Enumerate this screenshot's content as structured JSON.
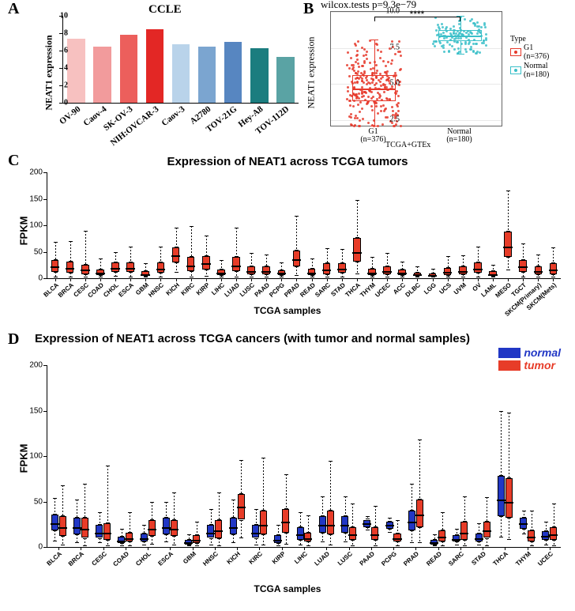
{
  "panelA": {
    "label": "A",
    "title": "CCLE",
    "ylabel": "NEAT1 expression",
    "ymax": 10,
    "ytick_step": 2,
    "categories": [
      "OV-90",
      "Caov-4",
      "SK-OV-3",
      "NIH:OVCAR-3",
      "Caov-3",
      "A2780",
      "TOV-21G",
      "Hey-A8",
      "TOV-112D"
    ],
    "values": [
      7.4,
      6.5,
      7.8,
      8.5,
      6.7,
      6.5,
      7.0,
      6.3,
      5.3
    ],
    "bar_colors": [
      "#f7c1c0",
      "#f29b9c",
      "#ec5f5c",
      "#e32725",
      "#b9d3ea",
      "#7ba5d0",
      "#5786c1",
      "#1b7d7f",
      "#5aa3a4"
    ],
    "bar_width": 0.68
  },
  "panelB": {
    "label": "B",
    "pvalue": "wilcox.tests p=9.3e−79",
    "stars": "****",
    "ylabel": "NEAT1 expression",
    "xlabel": "TCGA+GTEx",
    "ylim": [
      2.0,
      10.0
    ],
    "yticks": [
      2.5,
      5.0,
      7.5,
      10.0
    ],
    "groups": [
      {
        "name": "G1",
        "n": 376,
        "color": "#e6392b",
        "median": 4.7,
        "q1": 3.8,
        "q3": 5.6,
        "lo": 2.1,
        "hi": 8.1
      },
      {
        "name": "Normal",
        "n": 180,
        "color": "#3bc0c9",
        "median": 8.35,
        "q1": 8.0,
        "q3": 8.75,
        "lo": 7.1,
        "hi": 9.7
      }
    ],
    "legend_title": "Type"
  },
  "panelC": {
    "label": "C",
    "title": "Expression of NEAT1 across TCGA tumors",
    "ylabel": "FPKM",
    "xlabel": "TCGA samples",
    "ylim": [
      0,
      200
    ],
    "ytick_step": 50,
    "box_color": "#e73c28",
    "samples": [
      {
        "n": "BLCA",
        "q1": 12,
        "med": 22,
        "q3": 34,
        "lo": 2,
        "hi": 68
      },
      {
        "n": "BRCA",
        "q1": 10,
        "med": 20,
        "q3": 32,
        "lo": 1,
        "hi": 70
      },
      {
        "n": "CESC",
        "q1": 8,
        "med": 16,
        "q3": 26,
        "lo": 1,
        "hi": 90
      },
      {
        "n": "COAD",
        "q1": 6,
        "med": 10,
        "q3": 16,
        "lo": 1,
        "hi": 38
      },
      {
        "n": "CHOL",
        "q1": 12,
        "med": 20,
        "q3": 30,
        "lo": 3,
        "hi": 50
      },
      {
        "n": "ESCA",
        "q1": 12,
        "med": 20,
        "q3": 30,
        "lo": 2,
        "hi": 60
      },
      {
        "n": "GBM",
        "q1": 4,
        "med": 8,
        "q3": 13,
        "lo": 1,
        "hi": 28
      },
      {
        "n": "HNSC",
        "q1": 10,
        "med": 18,
        "q3": 30,
        "lo": 1,
        "hi": 60
      },
      {
        "n": "KICH",
        "q1": 30,
        "med": 44,
        "q3": 58,
        "lo": 10,
        "hi": 96
      },
      {
        "n": "KIRC",
        "q1": 14,
        "med": 24,
        "q3": 40,
        "lo": 2,
        "hi": 98
      },
      {
        "n": "KIRP",
        "q1": 16,
        "med": 28,
        "q3": 42,
        "lo": 3,
        "hi": 80
      },
      {
        "n": "LIHC",
        "q1": 6,
        "med": 10,
        "q3": 16,
        "lo": 1,
        "hi": 35
      },
      {
        "n": "LUAD",
        "q1": 14,
        "med": 24,
        "q3": 40,
        "lo": 2,
        "hi": 95
      },
      {
        "n": "LUSC",
        "q1": 8,
        "med": 14,
        "q3": 22,
        "lo": 1,
        "hi": 48
      },
      {
        "n": "PAAD",
        "q1": 8,
        "med": 14,
        "q3": 22,
        "lo": 1,
        "hi": 45
      },
      {
        "n": "PCPG",
        "q1": 6,
        "med": 10,
        "q3": 15,
        "lo": 1,
        "hi": 30
      },
      {
        "n": "PRAD",
        "q1": 22,
        "med": 36,
        "q3": 52,
        "lo": 4,
        "hi": 118
      },
      {
        "n": "READ",
        "q1": 6,
        "med": 11,
        "q3": 18,
        "lo": 1,
        "hi": 38
      },
      {
        "n": "SARC",
        "q1": 8,
        "med": 16,
        "q3": 28,
        "lo": 1,
        "hi": 56
      },
      {
        "n": "STAD",
        "q1": 10,
        "med": 18,
        "q3": 28,
        "lo": 1,
        "hi": 55
      },
      {
        "n": "THCA",
        "q1": 32,
        "med": 50,
        "q3": 76,
        "lo": 8,
        "hi": 148
      },
      {
        "n": "THYM",
        "q1": 6,
        "med": 11,
        "q3": 18,
        "lo": 1,
        "hi": 40
      },
      {
        "n": "UCEC",
        "q1": 8,
        "med": 14,
        "q3": 22,
        "lo": 1,
        "hi": 48
      },
      {
        "n": "ACC",
        "q1": 6,
        "med": 10,
        "q3": 16,
        "lo": 1,
        "hi": 32
      },
      {
        "n": "DLBC",
        "q1": 4,
        "med": 7,
        "q3": 11,
        "lo": 1,
        "hi": 22
      },
      {
        "n": "LGG",
        "q1": 3,
        "med": 6,
        "q3": 9,
        "lo": 1,
        "hi": 18
      },
      {
        "n": "UCS",
        "q1": 6,
        "med": 12,
        "q3": 20,
        "lo": 1,
        "hi": 42
      },
      {
        "n": "UVM",
        "q1": 8,
        "med": 14,
        "q3": 22,
        "lo": 2,
        "hi": 44
      },
      {
        "n": "OV",
        "q1": 10,
        "med": 18,
        "q3": 30,
        "lo": 2,
        "hi": 60
      },
      {
        "n": "LAML",
        "q1": 4,
        "med": 8,
        "q3": 13,
        "lo": 1,
        "hi": 26
      },
      {
        "n": "MESO",
        "q1": 40,
        "med": 60,
        "q3": 88,
        "lo": 15,
        "hi": 165
      },
      {
        "n": "TGCT",
        "q1": 12,
        "med": 22,
        "q3": 34,
        "lo": 2,
        "hi": 66
      },
      {
        "n": "SKCM(Primary)",
        "q1": 8,
        "med": 14,
        "q3": 22,
        "lo": 1,
        "hi": 45
      },
      {
        "n": "SKCM(Mets)",
        "q1": 8,
        "med": 16,
        "q3": 28,
        "lo": 1,
        "hi": 58
      }
    ]
  },
  "panelD": {
    "label": "D",
    "title": "Expression of NEAT1 across TCGA cancers (with tumor and normal samples)",
    "ylabel": "FPKM",
    "xlabel": "TCGA samples",
    "ylim": [
      0,
      200
    ],
    "ytick_step": 50,
    "normal_color": "#2137c5",
    "tumor_color": "#e73c28",
    "legend": [
      {
        "label": "normal",
        "color": "#2137c5"
      },
      {
        "label": "tumor",
        "color": "#e73c28"
      }
    ],
    "samples": [
      {
        "n": "BLCA",
        "N": {
          "q1": 18,
          "med": 26,
          "q3": 36,
          "lo": 6,
          "hi": 54
        },
        "T": {
          "q1": 12,
          "med": 22,
          "q3": 34,
          "lo": 2,
          "hi": 68
        }
      },
      {
        "n": "BRCA",
        "N": {
          "q1": 14,
          "med": 22,
          "q3": 32,
          "lo": 4,
          "hi": 52
        },
        "T": {
          "q1": 10,
          "med": 20,
          "q3": 32,
          "lo": 1,
          "hi": 70
        }
      },
      {
        "n": "CESC",
        "N": {
          "q1": 10,
          "med": 16,
          "q3": 24,
          "lo": 4,
          "hi": 38
        },
        "T": {
          "q1": 8,
          "med": 16,
          "q3": 26,
          "lo": 1,
          "hi": 90
        }
      },
      {
        "n": "COAD",
        "N": {
          "q1": 4,
          "med": 7,
          "q3": 11,
          "lo": 1,
          "hi": 20
        },
        "T": {
          "q1": 6,
          "med": 10,
          "q3": 16,
          "lo": 1,
          "hi": 38
        }
      },
      {
        "n": "CHOL",
        "N": {
          "q1": 6,
          "med": 10,
          "q3": 15,
          "lo": 2,
          "hi": 24
        },
        "T": {
          "q1": 12,
          "med": 20,
          "q3": 30,
          "lo": 3,
          "hi": 50
        }
      },
      {
        "n": "ESCA",
        "N": {
          "q1": 14,
          "med": 22,
          "q3": 32,
          "lo": 5,
          "hi": 50
        },
        "T": {
          "q1": 12,
          "med": 20,
          "q3": 30,
          "lo": 2,
          "hi": 60
        }
      },
      {
        "n": "GBM",
        "N": {
          "q1": 3,
          "med": 5,
          "q3": 8,
          "lo": 1,
          "hi": 14
        },
        "T": {
          "q1": 4,
          "med": 8,
          "q3": 13,
          "lo": 1,
          "hi": 28
        }
      },
      {
        "n": "HNSC",
        "N": {
          "q1": 10,
          "med": 16,
          "q3": 24,
          "lo": 2,
          "hi": 42
        },
        "T": {
          "q1": 10,
          "med": 18,
          "q3": 30,
          "lo": 1,
          "hi": 60
        }
      },
      {
        "n": "KICH",
        "N": {
          "q1": 14,
          "med": 22,
          "q3": 32,
          "lo": 4,
          "hi": 52
        },
        "T": {
          "q1": 30,
          "med": 44,
          "q3": 58,
          "lo": 10,
          "hi": 96
        }
      },
      {
        "n": "KIRC",
        "N": {
          "q1": 10,
          "med": 16,
          "q3": 24,
          "lo": 2,
          "hi": 42
        },
        "T": {
          "q1": 14,
          "med": 24,
          "q3": 40,
          "lo": 2,
          "hi": 98
        }
      },
      {
        "n": "KIRP",
        "N": {
          "q1": 4,
          "med": 8,
          "q3": 13,
          "lo": 1,
          "hi": 24
        },
        "T": {
          "q1": 16,
          "med": 28,
          "q3": 42,
          "lo": 3,
          "hi": 80
        }
      },
      {
        "n": "LIHC",
        "N": {
          "q1": 8,
          "med": 14,
          "q3": 22,
          "lo": 2,
          "hi": 38
        },
        "T": {
          "q1": 6,
          "med": 10,
          "q3": 16,
          "lo": 1,
          "hi": 35
        }
      },
      {
        "n": "LUAD",
        "N": {
          "q1": 16,
          "med": 24,
          "q3": 34,
          "lo": 5,
          "hi": 56
        },
        "T": {
          "q1": 14,
          "med": 24,
          "q3": 40,
          "lo": 2,
          "hi": 95
        }
      },
      {
        "n": "LUSC",
        "N": {
          "q1": 16,
          "med": 24,
          "q3": 34,
          "lo": 5,
          "hi": 56
        },
        "T": {
          "q1": 8,
          "med": 14,
          "q3": 22,
          "lo": 1,
          "hi": 48
        }
      },
      {
        "n": "PAAD",
        "N": {
          "q1": 22,
          "med": 26,
          "q3": 30,
          "lo": 18,
          "hi": 34
        },
        "T": {
          "q1": 8,
          "med": 14,
          "q3": 22,
          "lo": 1,
          "hi": 45
        }
      },
      {
        "n": "PCPG",
        "N": {
          "q1": 20,
          "med": 24,
          "q3": 28,
          "lo": 16,
          "hi": 32
        },
        "T": {
          "q1": 6,
          "med": 10,
          "q3": 15,
          "lo": 1,
          "hi": 30
        }
      },
      {
        "n": "PRAD",
        "N": {
          "q1": 18,
          "med": 28,
          "q3": 40,
          "lo": 4,
          "hi": 70
        },
        "T": {
          "q1": 22,
          "med": 36,
          "q3": 52,
          "lo": 4,
          "hi": 118
        }
      },
      {
        "n": "READ",
        "N": {
          "q1": 3,
          "med": 5,
          "q3": 8,
          "lo": 1,
          "hi": 14
        },
        "T": {
          "q1": 6,
          "med": 11,
          "q3": 18,
          "lo": 1,
          "hi": 38
        }
      },
      {
        "n": "SARC",
        "N": {
          "q1": 6,
          "med": 9,
          "q3": 13,
          "lo": 2,
          "hi": 20
        },
        "T": {
          "q1": 8,
          "med": 16,
          "q3": 28,
          "lo": 1,
          "hi": 56
        }
      },
      {
        "n": "STAD",
        "N": {
          "q1": 6,
          "med": 10,
          "q3": 15,
          "lo": 2,
          "hi": 26
        },
        "T": {
          "q1": 10,
          "med": 18,
          "q3": 28,
          "lo": 1,
          "hi": 55
        }
      },
      {
        "n": "THCA",
        "N": {
          "q1": 34,
          "med": 52,
          "q3": 78,
          "lo": 10,
          "hi": 150
        },
        "T": {
          "q1": 32,
          "med": 50,
          "q3": 76,
          "lo": 8,
          "hi": 148
        }
      },
      {
        "n": "THYM",
        "N": {
          "q1": 20,
          "med": 26,
          "q3": 32,
          "lo": 14,
          "hi": 40
        },
        "T": {
          "q1": 6,
          "med": 11,
          "q3": 18,
          "lo": 1,
          "hi": 40
        }
      },
      {
        "n": "UCEC",
        "N": {
          "q1": 8,
          "med": 12,
          "q3": 17,
          "lo": 2,
          "hi": 28
        },
        "T": {
          "q1": 8,
          "med": 14,
          "q3": 22,
          "lo": 1,
          "hi": 48
        }
      }
    ]
  }
}
